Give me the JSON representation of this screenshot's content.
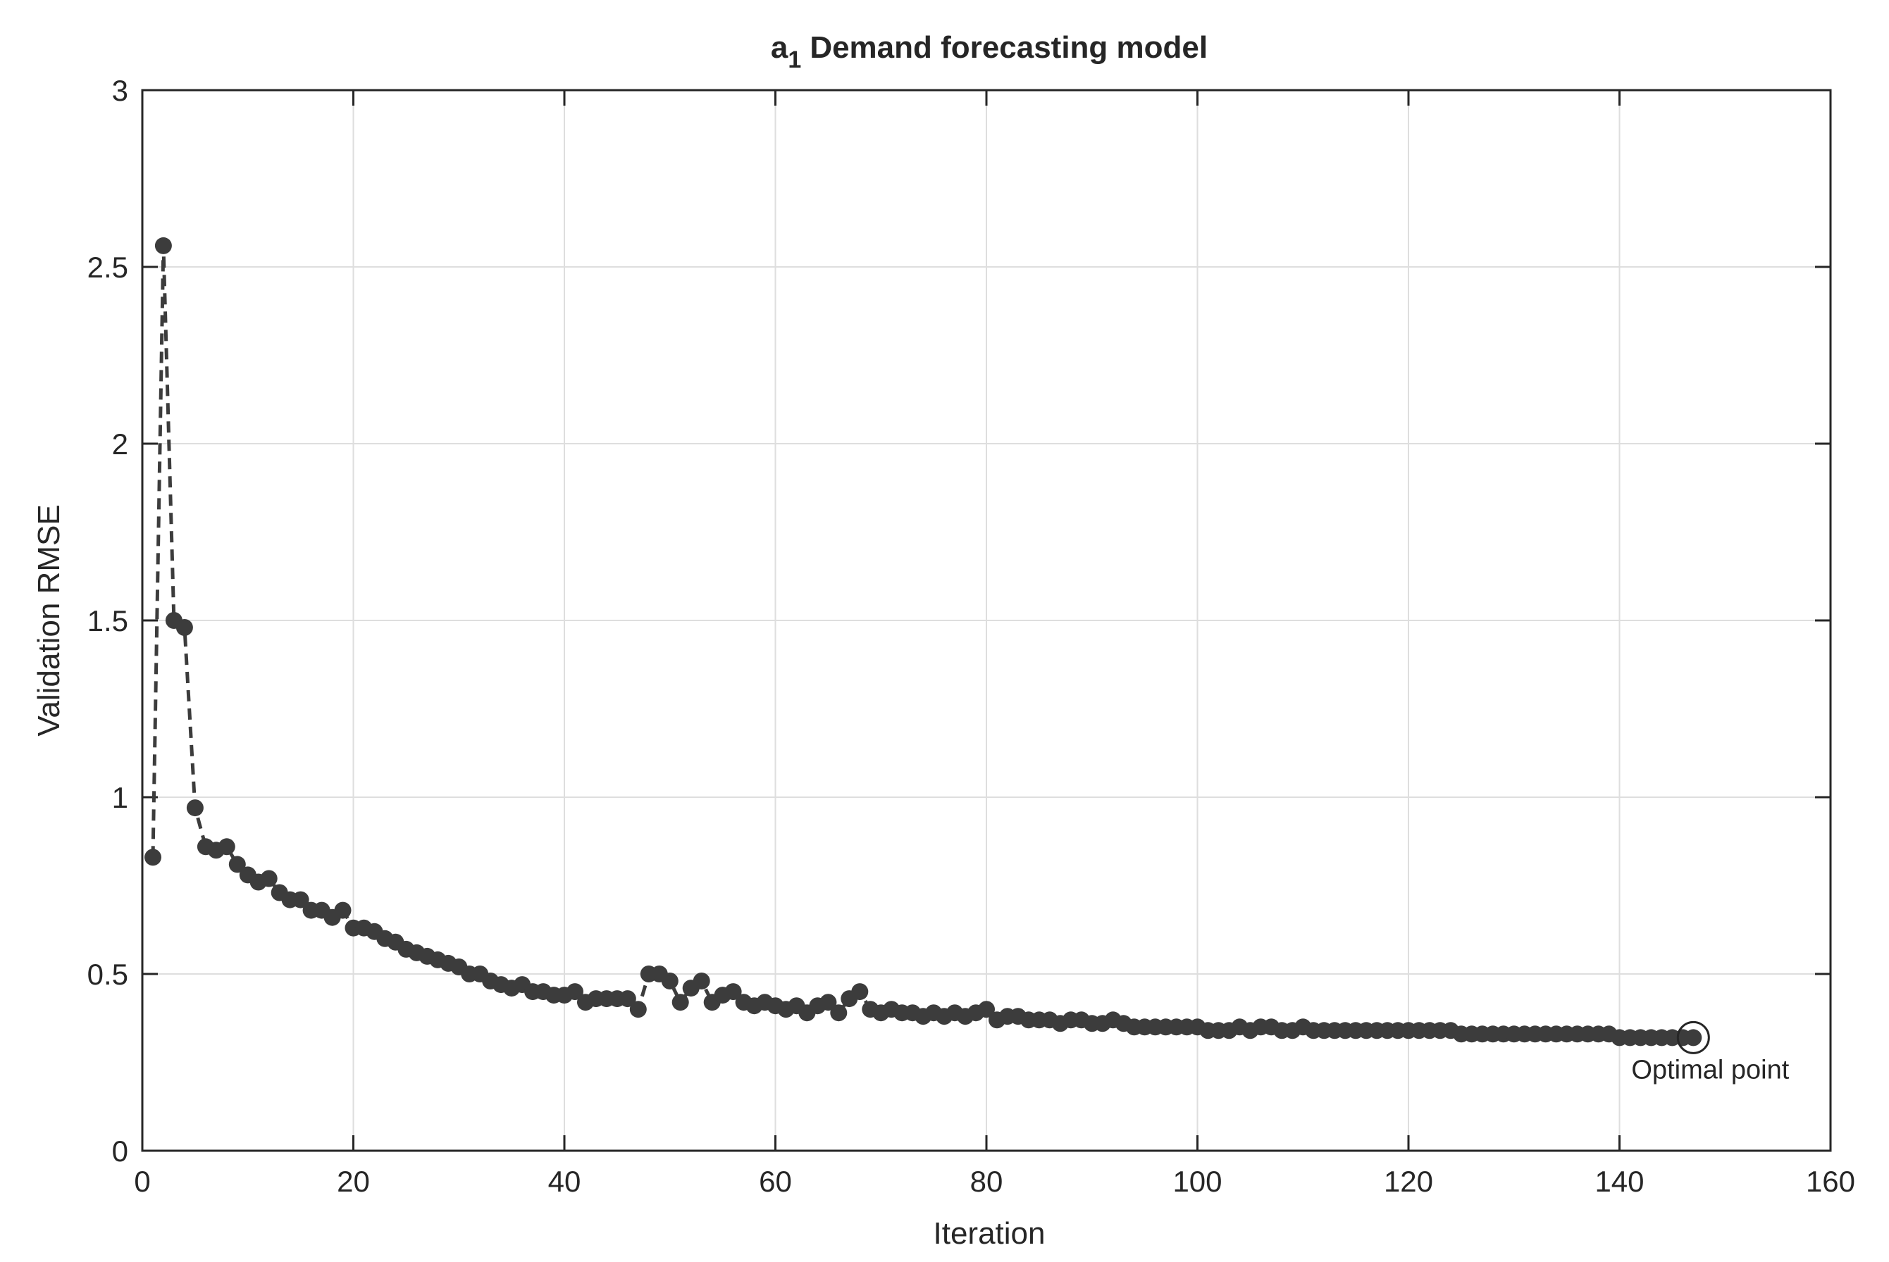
{
  "chart_data": {
    "type": "line",
    "title": {
      "main": "a",
      "subscript": "1",
      "rest": "Demand forecasting model"
    },
    "xlabel": "Iteration",
    "ylabel": "Validation RMSE",
    "xlim": [
      0,
      160
    ],
    "ylim": [
      0,
      3
    ],
    "xticks": [
      0,
      20,
      40,
      60,
      80,
      100,
      120,
      140,
      160
    ],
    "yticks": [
      0,
      0.5,
      1,
      1.5,
      2,
      2.5,
      3
    ],
    "xtick_labels": [
      "0",
      "20",
      "40",
      "60",
      "80",
      "100",
      "120",
      "140",
      "160"
    ],
    "ytick_labels": [
      "0",
      "0.5",
      "1",
      "1.5",
      "2",
      "2.5",
      "3"
    ],
    "grid": true,
    "line_style": "dashed",
    "marker": "filled-circle",
    "series_color": "#3c3c3c",
    "series": [
      {
        "x": [
          1,
          2,
          3,
          4,
          5,
          6,
          7,
          8,
          9,
          10,
          11,
          12,
          13,
          14,
          15,
          16,
          17,
          18,
          19,
          20,
          21,
          22,
          23,
          24,
          25,
          26,
          27,
          28,
          29,
          30,
          31,
          32,
          33,
          34,
          35,
          36,
          37,
          38,
          39,
          40,
          41,
          42,
          43,
          44,
          45,
          46,
          47,
          48,
          49,
          50,
          51,
          52,
          53,
          54,
          55,
          56,
          57,
          58,
          59,
          60,
          61,
          62,
          63,
          64,
          65,
          66,
          67,
          68,
          69,
          70,
          71,
          72,
          73,
          74,
          75,
          76,
          77,
          78,
          79,
          80,
          81,
          82,
          83,
          84,
          85,
          86,
          87,
          88,
          89,
          90,
          91,
          92,
          93,
          94,
          95,
          96,
          97,
          98,
          99,
          100,
          101,
          102,
          103,
          104,
          105,
          106,
          107,
          108,
          109,
          110,
          111,
          112,
          113,
          114,
          115,
          116,
          117,
          118,
          119,
          120,
          121,
          122,
          123,
          124,
          125,
          126,
          127,
          128,
          129,
          130,
          131,
          132,
          133,
          134,
          135,
          136,
          137,
          138,
          139,
          140,
          141,
          142,
          143,
          144,
          145,
          146,
          147
        ],
        "y": [
          0.83,
          2.56,
          1.5,
          1.48,
          0.97,
          0.86,
          0.85,
          0.86,
          0.81,
          0.78,
          0.76,
          0.77,
          0.73,
          0.71,
          0.71,
          0.68,
          0.68,
          0.66,
          0.68,
          0.63,
          0.63,
          0.62,
          0.6,
          0.59,
          0.57,
          0.56,
          0.55,
          0.54,
          0.53,
          0.52,
          0.5,
          0.5,
          0.48,
          0.47,
          0.46,
          0.47,
          0.45,
          0.45,
          0.44,
          0.44,
          0.45,
          0.42,
          0.43,
          0.43,
          0.43,
          0.43,
          0.4,
          0.5,
          0.5,
          0.48,
          0.42,
          0.46,
          0.48,
          0.42,
          0.44,
          0.45,
          0.42,
          0.41,
          0.42,
          0.41,
          0.4,
          0.41,
          0.39,
          0.41,
          0.42,
          0.39,
          0.43,
          0.45,
          0.4,
          0.39,
          0.4,
          0.39,
          0.39,
          0.38,
          0.39,
          0.38,
          0.39,
          0.38,
          0.39,
          0.4,
          0.37,
          0.38,
          0.38,
          0.37,
          0.37,
          0.37,
          0.36,
          0.37,
          0.37,
          0.36,
          0.36,
          0.37,
          0.36,
          0.35,
          0.35,
          0.35,
          0.35,
          0.35,
          0.35,
          0.35,
          0.34,
          0.34,
          0.34,
          0.35,
          0.34,
          0.35,
          0.35,
          0.34,
          0.34,
          0.35,
          0.34,
          0.34,
          0.34,
          0.34,
          0.34,
          0.34,
          0.34,
          0.34,
          0.34,
          0.34,
          0.34,
          0.34,
          0.34,
          0.34,
          0.33,
          0.33,
          0.33,
          0.33,
          0.33,
          0.33,
          0.33,
          0.33,
          0.33,
          0.33,
          0.33,
          0.33,
          0.33,
          0.33,
          0.33,
          0.32,
          0.32,
          0.32,
          0.32,
          0.32,
          0.32,
          0.32,
          0.32
        ]
      }
    ],
    "annotations": [
      {
        "text": "Optimal point",
        "x": 147,
        "y": 0.32,
        "marker": "open-circle"
      }
    ]
  }
}
